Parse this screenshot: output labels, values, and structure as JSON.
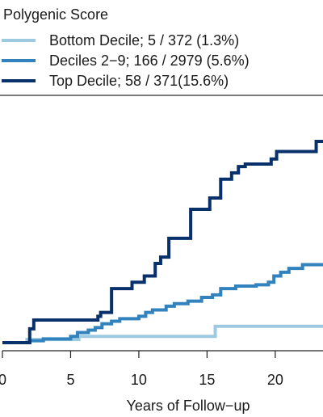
{
  "chart_data": {
    "type": "line",
    "title": "",
    "xlabel": "Years of Follow−up",
    "ylabel": "",
    "xlim": [
      0,
      23.5
    ],
    "xticks": [
      0,
      5,
      10,
      15,
      20
    ],
    "xtick_labels": [
      "0",
      "5",
      "10",
      "15",
      "20"
    ],
    "ylim": [
      0,
      16
    ],
    "grid": false,
    "legend": {
      "title": "Polygenic Score",
      "placement": "top-left",
      "entries": [
        "Bottom Decile; 5 / 372 (1.3%)",
        "Deciles 2−9; 166 / 2979 (5.6%)",
        "Top Decile; 58 / 371(15.6%)"
      ]
    },
    "series": [
      {
        "name": "Bottom Decile; 5 / 372 (1.3%)",
        "color": "#9ecae1",
        "step": true,
        "x": [
          0,
          1.8,
          5.6,
          15.6,
          23.5
        ],
        "y": [
          0,
          0.25,
          0.5,
          1.3,
          1.3
        ]
      },
      {
        "name": "Deciles 2−9; 166 / 2979 (5.6%)",
        "color": "#3182bd",
        "step": true,
        "x": [
          0,
          2.0,
          3.0,
          5.0,
          5.5,
          6.3,
          6.8,
          7.3,
          8.0,
          8.6,
          10.0,
          10.5,
          11.0,
          12.0,
          12.6,
          13.6,
          14.6,
          15.4,
          16.0,
          17.1,
          18.6,
          19.5,
          19.9,
          20.4,
          21.0,
          22.0,
          23.5
        ],
        "y": [
          0,
          0.15,
          0.3,
          0.5,
          0.8,
          1.0,
          1.2,
          1.5,
          1.7,
          1.9,
          2.1,
          2.4,
          2.6,
          2.9,
          3.1,
          3.3,
          3.6,
          3.8,
          4.3,
          4.5,
          4.6,
          4.8,
          5.3,
          5.6,
          5.9,
          6.2,
          6.2
        ]
      },
      {
        "name": "Top Decile; 58 / 371(15.6%)",
        "color": "#08306b",
        "step": true,
        "x": [
          0,
          2.0,
          2.3,
          7.0,
          7.2,
          8.0,
          9.5,
          10.4,
          11.2,
          11.6,
          12.2,
          13.8,
          15.2,
          16.0,
          16.8,
          17.3,
          17.8,
          19.7,
          20.1,
          21.0,
          23.0,
          23.5
        ],
        "y": [
          0,
          1.1,
          1.8,
          2.1,
          2.4,
          4.3,
          4.8,
          5.3,
          6.3,
          6.8,
          8.3,
          10.6,
          11.5,
          13.0,
          13.5,
          14.0,
          14.2,
          14.6,
          15.2,
          15.2,
          16.0,
          16.0
        ]
      }
    ]
  }
}
